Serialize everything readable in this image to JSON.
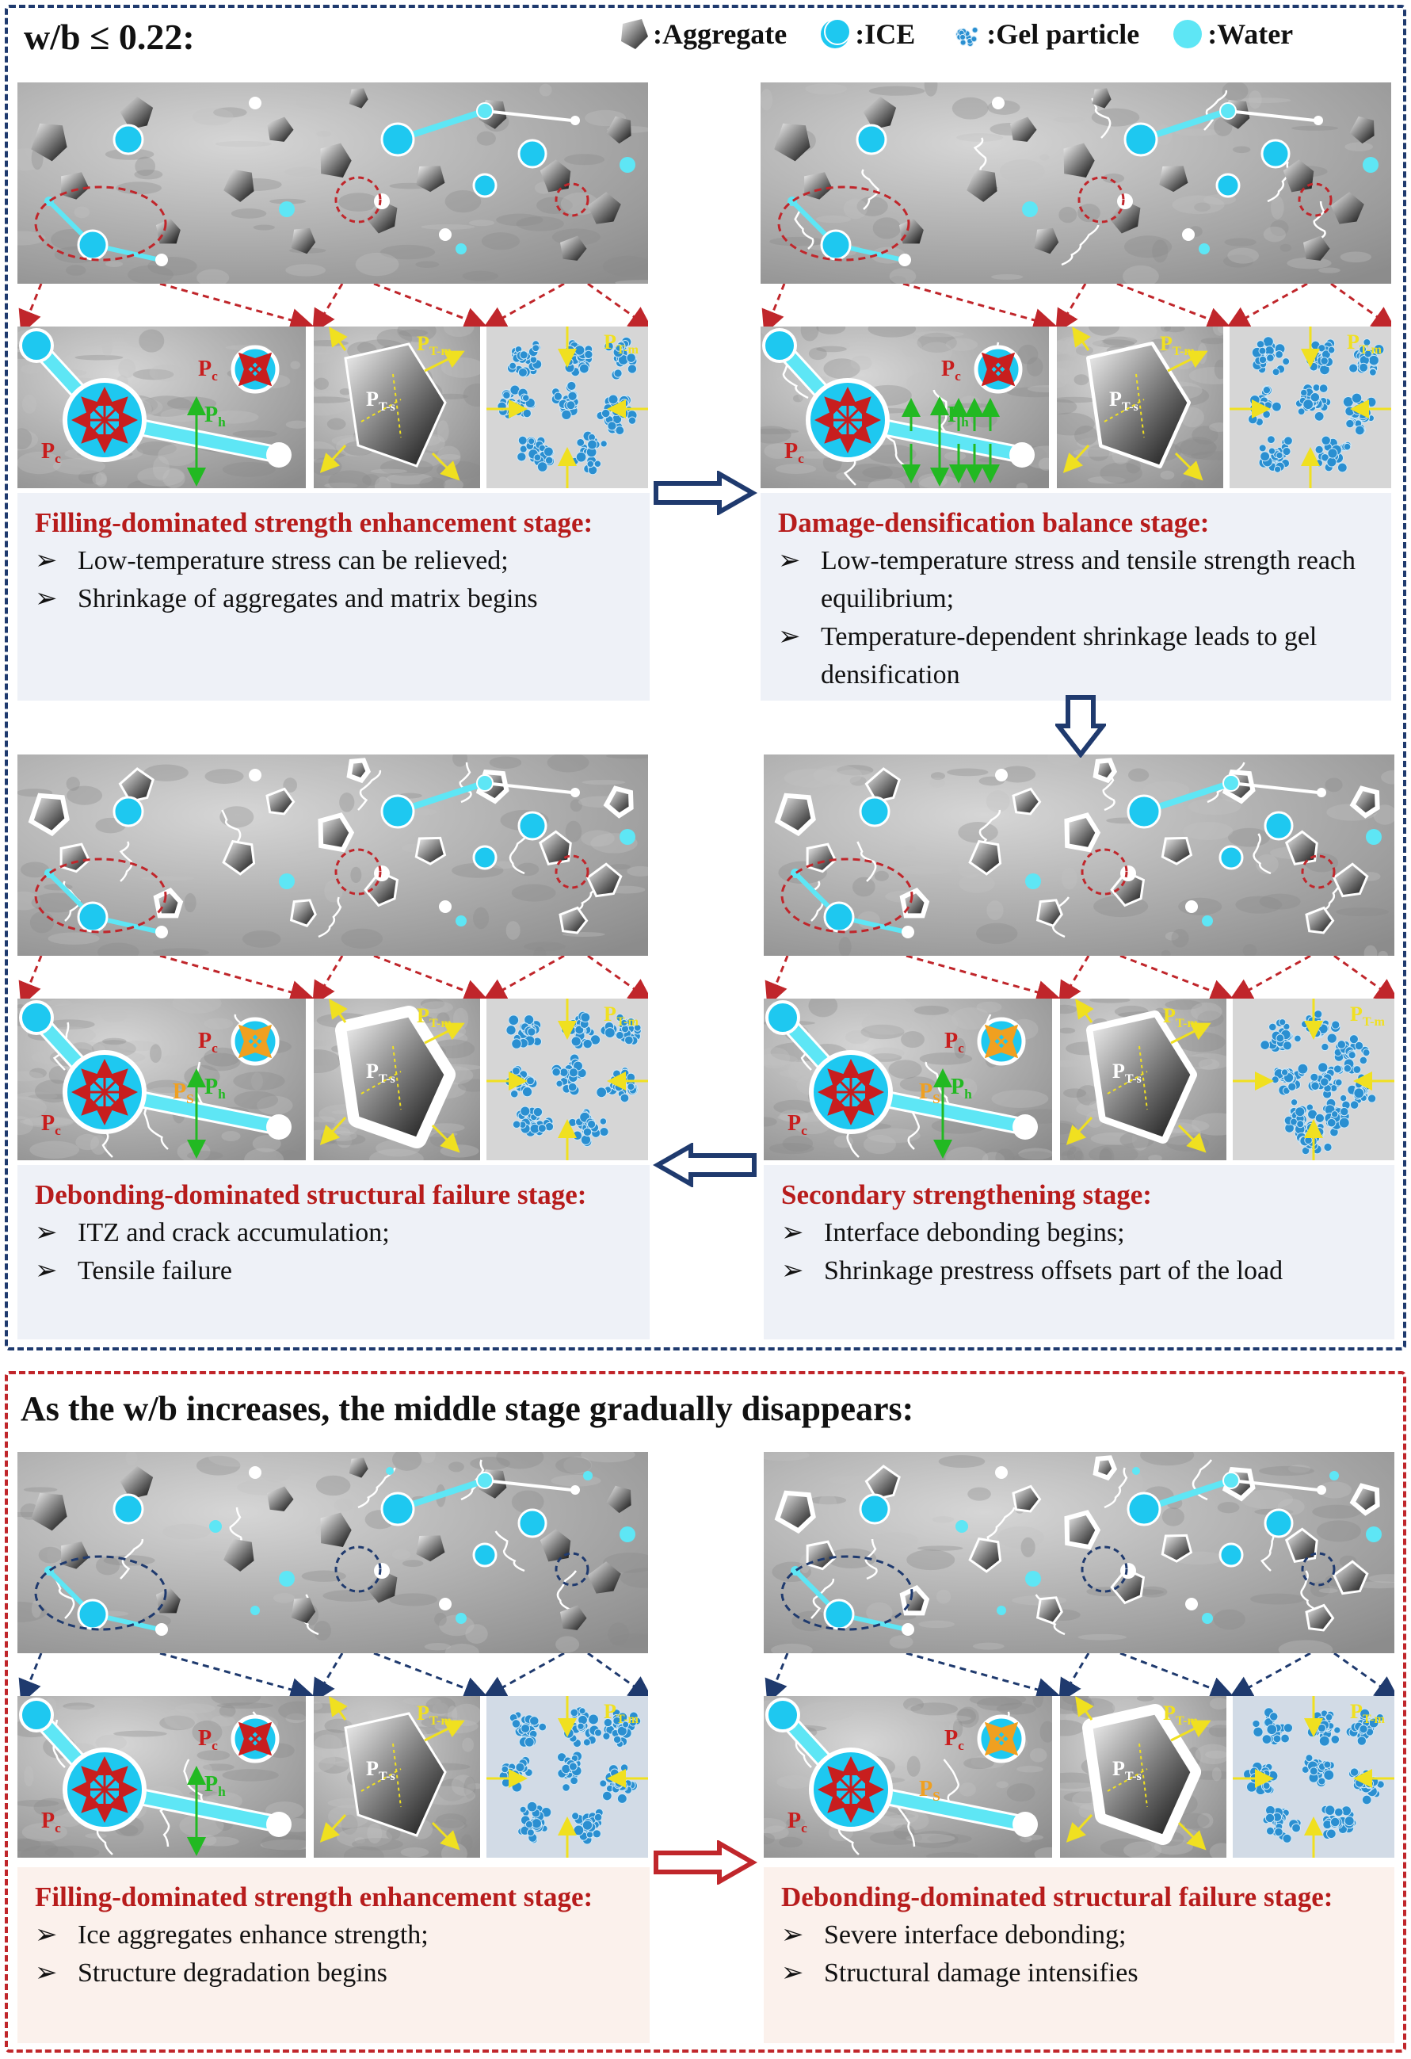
{
  "header": {
    "title": "w/b ≤ 0.22:"
  },
  "legend": [
    {
      "label": ":Aggregate",
      "icon": "aggregate-icon"
    },
    {
      "label": ":ICE",
      "icon": "ice-icon"
    },
    {
      "label": ":Gel particle",
      "icon": "gel-particle-icon"
    },
    {
      "label": ":Water",
      "icon": "water-icon"
    }
  ],
  "colors": {
    "ice": "#1ec8f0",
    "water": "#5ee6f5",
    "frame_top": "#1f3a6e",
    "frame_bottom": "#c0262b",
    "stage_title": "#b71c1c",
    "gel": "#2a8fd1",
    "stress_red": "#c81e1e",
    "stress_green": "#22b922",
    "stress_yellow": "#f0e020",
    "stress_orange": "#f0a020"
  },
  "labels": {
    "pc": "P",
    "pc_sub": "c",
    "ph": "P",
    "ph_sub": "h",
    "ps": "P",
    "ps_sub": "S",
    "pts": "P",
    "pts_sub": "T-s",
    "ptm": "P",
    "ptm_sub": "T-m"
  },
  "stages": {
    "s1": {
      "title": "Filling-dominated strength enhancement stage:",
      "bullets": [
        "Low-temperature stress can be relieved;",
        "Shrinkage of aggregates and matrix begins"
      ]
    },
    "s2": {
      "title": "Damage-densification balance stage:",
      "bullets": [
        "Low-temperature stress and tensile strength reach equilibrium;",
        "Temperature-dependent shrinkage leads to gel densification"
      ]
    },
    "s3": {
      "title": "Debonding-dominated structural failure stage:",
      "bullets": [
        "ITZ and crack accumulation;",
        "Tensile failure"
      ]
    },
    "s4": {
      "title": "Secondary strengthening stage:",
      "bullets": [
        "Interface debonding begins;",
        "Shrinkage prestress offsets part of the load"
      ]
    }
  },
  "bottom": {
    "title": "As the w/b increases, the middle stage gradually disappears:",
    "s5": {
      "title": "Filling-dominated strength enhancement stage:",
      "bullets": [
        "Ice aggregates enhance strength;",
        "Structure degradation begins"
      ]
    },
    "s6": {
      "title": "Debonding-dominated structural failure stage:",
      "bullets": [
        "Severe interface debonding;",
        "Structural damage intensifies"
      ]
    }
  },
  "bullet_marker": "➢"
}
